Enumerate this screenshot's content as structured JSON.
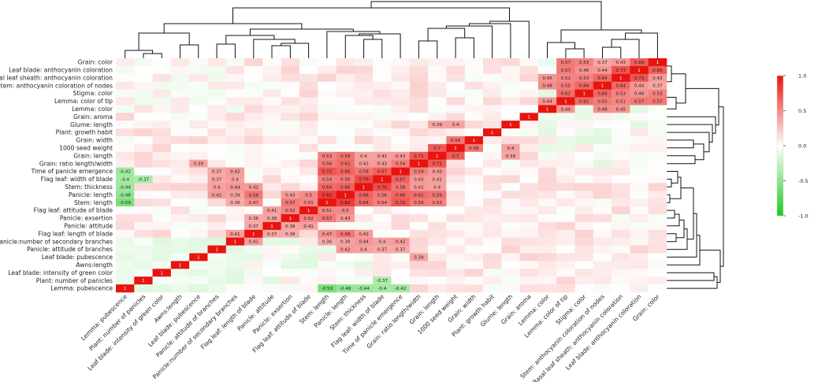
{
  "chart_data": {
    "type": "heatmap",
    "title": "",
    "rows": [
      "Grain: color",
      "Leaf blade: anthocyanin coloration",
      "Basal leaf sheath: anthocyanin coloration",
      "Stem: anthocyanin coloration of nodes",
      "Stigma: color",
      "Lemma: color of tip",
      "Lemma: color",
      "Grain: aroma",
      "Glume: length",
      "Plant: growth habit",
      "Grain: width",
      "1000 seed weight",
      "Grain: length",
      "Grain: ratio length/width",
      "Time of panicle emergence",
      "Flag leaf: width of blade",
      "Stem: thickness",
      "Panicle: length",
      "Stem: length",
      "Flag leaf: attitude of blade",
      "Panicle: exsertion",
      "Panicle: attitude",
      "Flag leaf: length of blade",
      "Panicle:number of secondary branches",
      "Panicle: attitude of branches",
      "Leaf blade: pubescence",
      "Awns:length",
      "Leaf blade: intensity of green color",
      "Plant: number of panicles",
      "Lemma: pubescence"
    ],
    "columns": [
      "Lemma: pubescence",
      "Plant: number of panicles",
      "Leaf blade: intensity of green color",
      "Awns:length",
      "Leaf blade: pubescence",
      "Panicle: attitude of branches",
      "Panicle:number of secondary branches",
      "Flag leaf: length of blade",
      "Panicle: attitude",
      "Panicle: exsertion",
      "Flag leaf: attitude of blade",
      "Stem: length",
      "Panicle: length",
      "Stem: thickness",
      "Flag leaf: width of blade",
      "Time of panicle emergence",
      "Grain: ratio length/width",
      "Grain: length",
      "1000 seed weight",
      "Grain: width",
      "Plant: growth habit",
      "Glume: length",
      "Grain: aroma",
      "Lemma: color",
      "Lemma: color of tip",
      "Stigma: color",
      "Stem: anthocyanin coloration of nodes",
      "Basal leaf sheath: anthocyanin coloration",
      "Leaf blade: anthocyanin coloration",
      "Grain: color"
    ],
    "labeled_cells": [
      [
        0,
        24,
        "0.57"
      ],
      [
        0,
        25,
        "0.53"
      ],
      [
        0,
        26,
        "0.37"
      ],
      [
        0,
        27,
        "0.43"
      ],
      [
        0,
        28,
        "0.69"
      ],
      [
        0,
        29,
        "1"
      ],
      [
        1,
        24,
        "0.57"
      ],
      [
        1,
        25,
        "0.46"
      ],
      [
        1,
        26,
        "0.44"
      ],
      [
        1,
        27,
        "0.73"
      ],
      [
        1,
        28,
        "1"
      ],
      [
        1,
        29,
        "0.69"
      ],
      [
        2,
        23,
        "0.45"
      ],
      [
        2,
        24,
        "0.51"
      ],
      [
        2,
        25,
        "0.53"
      ],
      [
        2,
        26,
        "0.64"
      ],
      [
        2,
        27,
        "1"
      ],
      [
        2,
        28,
        "0.73"
      ],
      [
        2,
        29,
        "0.43"
      ],
      [
        3,
        23,
        "0.48"
      ],
      [
        3,
        24,
        "0.55"
      ],
      [
        3,
        25,
        "0.64"
      ],
      [
        3,
        26,
        "1"
      ],
      [
        3,
        27,
        "0.64"
      ],
      [
        3,
        28,
        "0.44"
      ],
      [
        3,
        29,
        "0.37"
      ],
      [
        4,
        24,
        "0.62"
      ],
      [
        4,
        25,
        "1"
      ],
      [
        4,
        26,
        "0.64"
      ],
      [
        4,
        27,
        "0.53"
      ],
      [
        4,
        28,
        "0.46"
      ],
      [
        4,
        29,
        "0.53"
      ],
      [
        5,
        23,
        "0.44"
      ],
      [
        5,
        24,
        "1"
      ],
      [
        5,
        25,
        "0.62"
      ],
      [
        5,
        26,
        "0.55"
      ],
      [
        5,
        27,
        "0.51"
      ],
      [
        5,
        28,
        "0.57"
      ],
      [
        5,
        29,
        "0.57"
      ],
      [
        6,
        23,
        "1"
      ],
      [
        6,
        24,
        "0.44"
      ],
      [
        6,
        26,
        "0.48"
      ],
      [
        6,
        27,
        "0.45"
      ],
      [
        7,
        22,
        "1"
      ],
      [
        8,
        17,
        "0.39"
      ],
      [
        8,
        18,
        "0.4"
      ],
      [
        8,
        21,
        "1"
      ],
      [
        9,
        20,
        "1"
      ],
      [
        10,
        18,
        "0.58"
      ],
      [
        10,
        19,
        "1"
      ],
      [
        11,
        17,
        "0.7"
      ],
      [
        11,
        18,
        "1"
      ],
      [
        11,
        19,
        "0.58"
      ],
      [
        11,
        21,
        "0.4"
      ],
      [
        12,
        11,
        "0.53"
      ],
      [
        12,
        12,
        "0.59"
      ],
      [
        12,
        13,
        "0.4"
      ],
      [
        12,
        14,
        "0.41"
      ],
      [
        12,
        15,
        "0.43"
      ],
      [
        12,
        16,
        "0.71"
      ],
      [
        12,
        17,
        "1"
      ],
      [
        12,
        18,
        "0.7"
      ],
      [
        12,
        21,
        "0.39"
      ],
      [
        13,
        4,
        "0.39"
      ],
      [
        13,
        11,
        "0.56"
      ],
      [
        13,
        12,
        "0.62"
      ],
      [
        13,
        13,
        "0.42"
      ],
      [
        13,
        14,
        "0.43"
      ],
      [
        13,
        15,
        "0.54"
      ],
      [
        13,
        16,
        "1"
      ],
      [
        13,
        17,
        "0.71"
      ],
      [
        14,
        0,
        "-0.42"
      ],
      [
        14,
        5,
        "0.37"
      ],
      [
        14,
        6,
        "0.42"
      ],
      [
        14,
        11,
        "0.72"
      ],
      [
        14,
        12,
        "0.66"
      ],
      [
        14,
        13,
        "0.58"
      ],
      [
        14,
        14,
        "0.67"
      ],
      [
        14,
        15,
        "1"
      ],
      [
        14,
        16,
        "0.54"
      ],
      [
        14,
        17,
        "0.43"
      ],
      [
        15,
        0,
        "-0.4"
      ],
      [
        15,
        1,
        "-0.37"
      ],
      [
        15,
        5,
        "0.37"
      ],
      [
        15,
        6,
        "0.4"
      ],
      [
        15,
        11,
        "0.54"
      ],
      [
        15,
        12,
        "0.56"
      ],
      [
        15,
        13,
        "0.76"
      ],
      [
        15,
        14,
        "1"
      ],
      [
        15,
        15,
        "0.67"
      ],
      [
        15,
        16,
        "0.43"
      ],
      [
        15,
        17,
        "0.41"
      ],
      [
        16,
        0,
        "-0.44"
      ],
      [
        16,
        5,
        "0.4"
      ],
      [
        16,
        6,
        "0.44"
      ],
      [
        16,
        7,
        "0.42"
      ],
      [
        16,
        11,
        "0.64"
      ],
      [
        16,
        12,
        "0.66"
      ],
      [
        16,
        13,
        "1"
      ],
      [
        16,
        14,
        "0.76"
      ],
      [
        16,
        15,
        "0.58"
      ],
      [
        16,
        16,
        "0.42"
      ],
      [
        16,
        17,
        "0.4"
      ],
      [
        17,
        0,
        "-0.48"
      ],
      [
        17,
        5,
        "0.42"
      ],
      [
        17,
        6,
        "0.39"
      ],
      [
        17,
        7,
        "0.58"
      ],
      [
        17,
        9,
        "0.43"
      ],
      [
        17,
        10,
        "0.5"
      ],
      [
        17,
        11,
        "0.82"
      ],
      [
        17,
        12,
        "1"
      ],
      [
        17,
        13,
        "0.66"
      ],
      [
        17,
        14,
        "0.56"
      ],
      [
        17,
        15,
        "0.66"
      ],
      [
        17,
        16,
        "0.62"
      ],
      [
        17,
        17,
        "0.59"
      ],
      [
        18,
        0,
        "-0.59"
      ],
      [
        18,
        6,
        "0.36"
      ],
      [
        18,
        7,
        "0.47"
      ],
      [
        18,
        9,
        "0.57"
      ],
      [
        18,
        10,
        "0.51"
      ],
      [
        18,
        11,
        "1"
      ],
      [
        18,
        12,
        "0.82"
      ],
      [
        18,
        13,
        "0.64"
      ],
      [
        18,
        14,
        "0.54"
      ],
      [
        18,
        15,
        "0.72"
      ],
      [
        18,
        16,
        "0.56"
      ],
      [
        18,
        17,
        "0.53"
      ],
      [
        19,
        8,
        "0.41"
      ],
      [
        19,
        9,
        "0.52"
      ],
      [
        19,
        10,
        "1"
      ],
      [
        19,
        11,
        "0.51"
      ],
      [
        19,
        12,
        "0.5"
      ],
      [
        20,
        7,
        "0.36"
      ],
      [
        20,
        8,
        "0.38"
      ],
      [
        20,
        9,
        "1"
      ],
      [
        20,
        10,
        "0.52"
      ],
      [
        20,
        11,
        "0.57"
      ],
      [
        20,
        12,
        "0.43"
      ],
      [
        21,
        7,
        "0.37"
      ],
      [
        21,
        8,
        "1"
      ],
      [
        21,
        9,
        "0.38"
      ],
      [
        21,
        10,
        "0.41"
      ],
      [
        22,
        6,
        "0.41"
      ],
      [
        22,
        7,
        "1"
      ],
      [
        22,
        8,
        "0.37"
      ],
      [
        22,
        9,
        "0.36"
      ],
      [
        22,
        11,
        "0.47"
      ],
      [
        22,
        12,
        "0.58"
      ],
      [
        22,
        13,
        "0.42"
      ],
      [
        23,
        6,
        "1"
      ],
      [
        23,
        7,
        "0.41"
      ],
      [
        23,
        11,
        "0.36"
      ],
      [
        23,
        12,
        "0.39"
      ],
      [
        23,
        13,
        "0.44"
      ],
      [
        23,
        14,
        "0.4"
      ],
      [
        23,
        15,
        "0.42"
      ],
      [
        24,
        5,
        "1"
      ],
      [
        24,
        12,
        "0.42"
      ],
      [
        24,
        13,
        "0.4"
      ],
      [
        24,
        14,
        "0.37"
      ],
      [
        24,
        15,
        "0.37"
      ],
      [
        25,
        4,
        "1"
      ],
      [
        25,
        16,
        "0.39"
      ],
      [
        26,
        3,
        "1"
      ],
      [
        27,
        2,
        "1"
      ],
      [
        28,
        1,
        "1"
      ],
      [
        28,
        14,
        "-0.37"
      ],
      [
        29,
        0,
        "1"
      ],
      [
        29,
        11,
        "-0.59"
      ],
      [
        29,
        12,
        "-0.48"
      ],
      [
        29,
        13,
        "-0.44"
      ],
      [
        29,
        14,
        "-0.4"
      ],
      [
        29,
        15,
        "-0.42"
      ]
    ],
    "colorbar": {
      "min": -1.0,
      "max": 1.0,
      "ticks": [
        "1.0",
        "0.5",
        "0.0",
        "-0.5",
        "-1.0"
      ],
      "low_color": "#1ec81e",
      "mid_color": "#ffffff",
      "high_color": "#e8140f"
    },
    "dendrogram": {
      "column_clusters": true,
      "row_clusters": true
    }
  }
}
